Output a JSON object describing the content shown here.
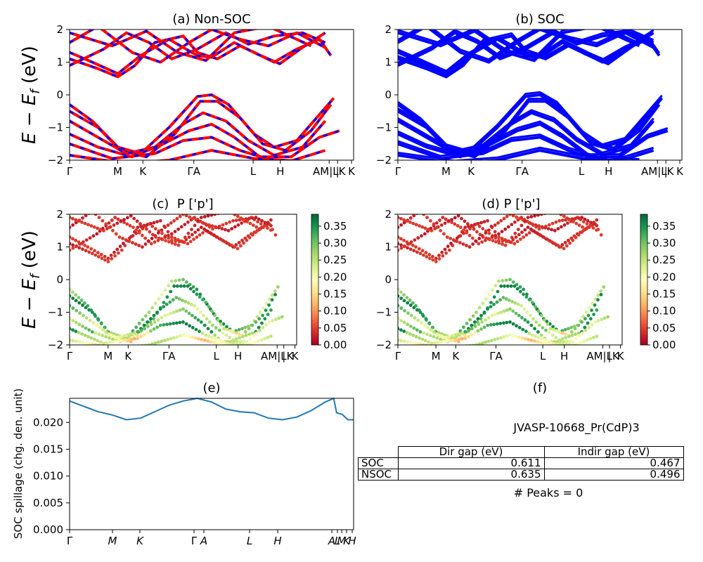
{
  "chart_data": [
    {
      "id": "a",
      "type": "line",
      "title": "(a) Non-SOC",
      "ylabel": "$E - E_f$ (eV)",
      "ylim": [
        -2,
        2
      ],
      "yticks": [
        "2",
        "1",
        "0",
        "−1",
        "−2"
      ],
      "xticks": [
        "Γ",
        "M",
        "K",
        "ΓA",
        "L",
        "H",
        "AM|LK",
        "|",
        "K"
      ],
      "series_colors": [
        "#ff0000",
        "#0000ff"
      ],
      "style": "red bands overlaid with dashed blue bands"
    },
    {
      "id": "b",
      "type": "line",
      "title": "(b) SOC",
      "ylim": [
        -2,
        2
      ],
      "yticks": [
        "2",
        "1",
        "0",
        "−1",
        "−2"
      ],
      "xticks": [
        "Γ",
        "M",
        "K",
        "ΓA",
        "L",
        "H",
        "AM|LK",
        "|",
        "K"
      ],
      "series_colors": [
        "#0000ff"
      ]
    },
    {
      "id": "c",
      "type": "scatter",
      "title": "(c)  P ['p']",
      "ylabel": "$E - E_f$ (eV)",
      "ylim": [
        -2,
        2
      ],
      "yticks": [
        "2",
        "1",
        "0",
        "−1",
        "−2"
      ],
      "xticks": [
        "Γ",
        "M",
        "K",
        "ΓA",
        "L",
        "H",
        "AM|LK",
        "|",
        "K"
      ],
      "colormap": "RdYlGn",
      "colorbar_ticks": [
        "0.35",
        "0.30",
        "0.25",
        "0.20",
        "0.15",
        "0.10",
        "0.05",
        "0.00"
      ],
      "colorbar_range": [
        0.0,
        0.385
      ]
    },
    {
      "id": "d",
      "type": "scatter",
      "title": "(d) P ['p']",
      "ylim": [
        -2,
        2
      ],
      "yticks": [
        "2",
        "1",
        "0",
        "−1",
        "−2"
      ],
      "xticks": [
        "Γ",
        "M",
        "K",
        "ΓA",
        "L",
        "H",
        "AM|LK",
        "|",
        "K"
      ],
      "colormap": "RdYlGn",
      "colorbar_ticks": [
        "0.35",
        "0.30",
        "0.25",
        "0.20",
        "0.15",
        "0.10",
        "0.05",
        "0.00"
      ],
      "colorbar_range": [
        0.0,
        0.385
      ]
    },
    {
      "id": "e",
      "type": "line",
      "title": "(e)",
      "ylabel": "SOC spillage (chg. den. unit)",
      "ylim": [
        0,
        0.0245
      ],
      "yticks": [
        "0.020",
        "0.015",
        "0.010",
        "0.005",
        "0.000"
      ],
      "xticks": [
        "Γ",
        "M",
        "K",
        "Γ",
        "A",
        "L",
        "H",
        "A",
        "L",
        "M",
        "K",
        "H"
      ],
      "x": [
        0,
        0.05,
        0.1,
        0.15,
        0.2,
        0.25,
        0.3,
        0.35,
        0.4,
        0.45,
        0.5,
        0.55,
        0.6,
        0.65,
        0.7,
        0.75,
        0.8,
        0.85,
        0.9,
        0.93,
        0.94,
        0.96,
        0.98,
        1.0
      ],
      "values": [
        0.024,
        0.023,
        0.022,
        0.0214,
        0.0205,
        0.0208,
        0.022,
        0.0232,
        0.024,
        0.0245,
        0.0238,
        0.0225,
        0.022,
        0.0218,
        0.0208,
        0.0205,
        0.021,
        0.0222,
        0.0238,
        0.0245,
        0.0218,
        0.0215,
        0.0205,
        0.0205
      ],
      "color": "#1f77b4"
    },
    {
      "id": "f",
      "type": "table",
      "title": "(f)",
      "subtitle": "JVASP-10668_Pr(CdP)3",
      "columns": [
        "Dir gap (eV)",
        "Indir gap (eV)"
      ],
      "rows": [
        {
          "label": "SOC",
          "dir": "0.611",
          "indir": "0.467"
        },
        {
          "label": "NSOC",
          "dir": "0.635",
          "indir": "0.496"
        }
      ],
      "footer": "# Peaks = 0"
    }
  ]
}
